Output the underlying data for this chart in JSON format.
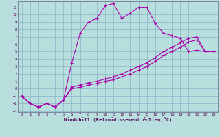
{
  "title": "",
  "xlabel": "Windchill (Refroidissement éolien,°C)",
  "xlim": [
    -0.5,
    23.5
  ],
  "ylim": [
    -3.2,
    11.8
  ],
  "yticks": [
    -3,
    -2,
    -1,
    0,
    1,
    2,
    3,
    4,
    5,
    6,
    7,
    8,
    9,
    10,
    11
  ],
  "xticks": [
    0,
    1,
    2,
    3,
    4,
    5,
    6,
    7,
    8,
    9,
    10,
    11,
    12,
    13,
    14,
    15,
    16,
    17,
    18,
    19,
    20,
    21,
    22,
    23
  ],
  "background_color": "#b8dede",
  "grid_color": "#8ab4c8",
  "line_color": "#aa00aa",
  "line1_x": [
    0,
    1,
    2,
    3,
    4,
    5,
    6,
    7,
    8,
    9,
    10,
    11,
    12,
    13,
    14,
    15,
    16,
    17,
    18,
    19,
    20,
    21,
    22,
    23
  ],
  "line1_y": [
    -1,
    -2,
    -2.5,
    -2,
    -2.5,
    -1.5,
    3.5,
    7.5,
    9,
    9.5,
    11.2,
    11.5,
    9.5,
    10.2,
    11,
    11,
    8.8,
    7.5,
    7.2,
    6.8,
    5.0,
    5.2,
    5.0,
    5.0
  ],
  "line2_x": [
    0,
    1,
    2,
    3,
    4,
    5,
    6,
    7,
    8,
    9,
    10,
    11,
    12,
    13,
    14,
    15,
    16,
    17,
    18,
    19,
    20,
    21,
    22,
    23
  ],
  "line2_y": [
    -1,
    -2,
    -2.5,
    -2,
    -2.5,
    -1.5,
    0.2,
    0.5,
    0.8,
    1.0,
    1.3,
    1.6,
    2.0,
    2.5,
    3.0,
    3.5,
    4.2,
    5.0,
    5.6,
    6.2,
    6.8,
    7.0,
    5.0,
    5.0
  ],
  "line3_x": [
    0,
    1,
    2,
    3,
    4,
    5,
    6,
    7,
    8,
    9,
    10,
    11,
    12,
    13,
    14,
    15,
    16,
    17,
    18,
    19,
    20,
    21,
    22,
    23
  ],
  "line3_y": [
    -1,
    -2,
    -2.5,
    -2,
    -2.5,
    -1.5,
    0.0,
    0.2,
    0.5,
    0.7,
    1.0,
    1.2,
    1.6,
    2.0,
    2.5,
    3.0,
    3.7,
    4.5,
    5.0,
    5.6,
    6.3,
    6.6,
    5.0,
    5.0
  ]
}
